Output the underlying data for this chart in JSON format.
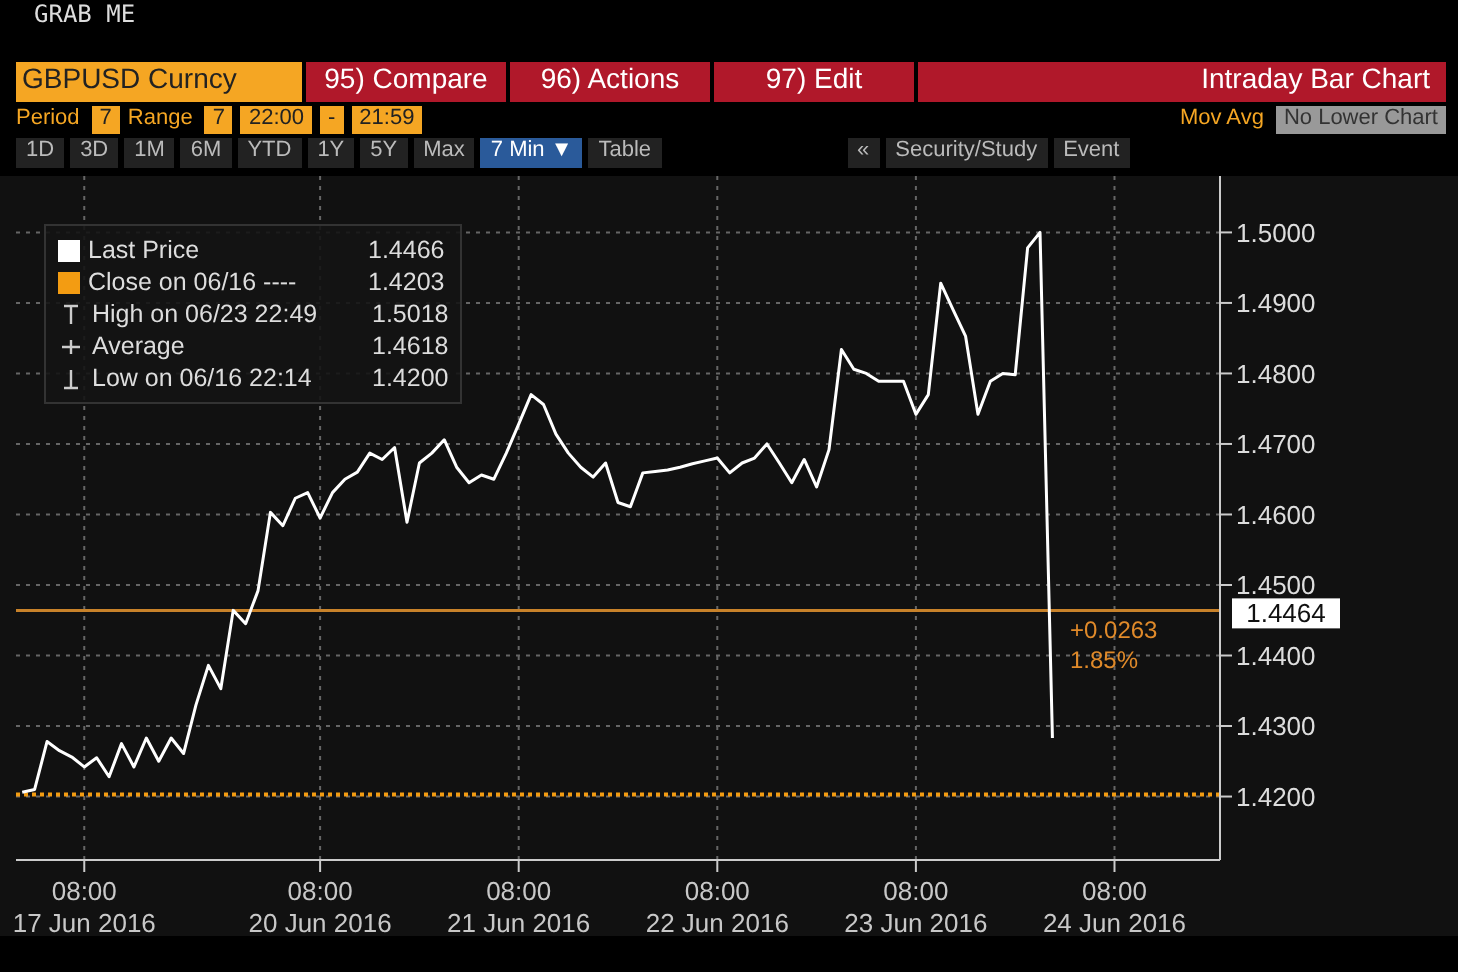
{
  "chart_data": {
    "type": "line",
    "title": "GBPUSD Curncy",
    "subtitle": "Intraday Bar Chart",
    "annotations": [
      "GRAB ME",
      "95) Compare",
      "96) Actions",
      "97) Edit",
      "Period",
      "7",
      "Range",
      "7",
      "22:00",
      "-",
      "21:59",
      "Mov Avg",
      "No Lower Chart",
      "1D",
      "3D",
      "1M",
      "6M",
      "YTD",
      "1Y",
      "5Y",
      "Max",
      "7 Min ▼",
      "Table",
      "«",
      "Security/Study",
      "Event",
      "1.4466",
      "Close on 06/16 ----",
      "1.4203",
      "High on 06/23 22:49",
      "1.5018",
      "Average",
      "1.4618",
      "Low on 06/16 22:14",
      "1.4200",
      "+0.0263",
      "1.85%"
    ],
    "categories": [
      null,
      null,
      null,
      null,
      null,
      "08:00\n17 Jun 2016",
      null,
      null,
      null,
      null,
      null,
      null,
      null,
      null,
      null,
      null,
      null,
      null,
      null,
      null,
      null,
      null,
      null,
      null,
      "08:00\n20 Jun 2016",
      null,
      null,
      null,
      null,
      null,
      null,
      null,
      null,
      null,
      null,
      null,
      null,
      null,
      null,
      null,
      "08:00\n21 Jun 2016",
      null,
      null,
      null,
      null,
      null,
      null,
      null,
      null,
      null,
      null,
      null,
      null,
      null,
      null,
      null,
      "08:00\n22 Jun 2016",
      null,
      null,
      null,
      null,
      null,
      null,
      null,
      null,
      null,
      null,
      null,
      null,
      null,
      null,
      null,
      "08:00\n23 Jun 2016",
      null,
      null,
      null,
      null,
      null,
      null,
      null,
      null,
      null,
      null,
      null,
      null,
      null,
      null,
      null,
      "08:00\n24 Jun 2016",
      null,
      null,
      null,
      null,
      null,
      null,
      null,
      null
    ],
    "series": [
      {
        "name": "Last Price",
        "color": "#ffffff",
        "values": [
          1.4206,
          1.421,
          1.4278,
          1.4265,
          1.4256,
          1.4242,
          1.4255,
          1.4228,
          1.4275,
          1.4242,
          1.4283,
          1.425,
          1.4283,
          1.4261,
          1.433,
          1.4386,
          1.4353,
          1.4464,
          1.4445,
          1.4492,
          1.4603,
          1.4584,
          1.4623,
          1.4631,
          1.4595,
          1.4631,
          1.465,
          1.466,
          1.4687,
          1.4678,
          1.4695,
          1.4589,
          1.4673,
          1.4687,
          1.4706,
          1.4667,
          1.4645,
          1.4656,
          1.465,
          1.4687,
          1.4728,
          1.477,
          1.4756,
          1.4714,
          1.4687,
          1.4667,
          1.4653,
          1.4673,
          1.4617,
          1.4611,
          1.4659,
          1.4661,
          1.4663,
          1.4667,
          1.4672,
          1.4676,
          1.468,
          1.4659,
          1.4673,
          1.468,
          1.47,
          1.4673,
          1.4645,
          1.4678,
          1.4639,
          1.4692,
          1.4834,
          1.4806,
          1.48,
          1.4789,
          1.4789,
          1.4789,
          1.4742,
          1.477,
          1.4928,
          1.489,
          1.4853,
          1.4742,
          1.4789,
          1.48,
          1.4798,
          1.4978,
          1.5,
          1.4283,
          null,
          null,
          null,
          null,
          null,
          null,
          null,
          null,
          null,
          null,
          null,
          null,
          null
        ]
      }
    ],
    "ref_lines": [
      {
        "axis": "y",
        "value": 1.4203,
        "color": "#f39c12",
        "line_style": "dotted"
      },
      {
        "axis": "y",
        "value": 1.4464,
        "label": "1.4464",
        "color": "#c8822a",
        "line_style": "solid"
      }
    ],
    "ylim": [
      1.411,
      1.508
    ],
    "yticks": [
      {
        "value": 1.42,
        "label": "1.4200"
      },
      {
        "value": 1.43,
        "label": "1.4300"
      },
      {
        "value": 1.44,
        "label": "1.4400"
      },
      {
        "value": 1.45,
        "label": "1.4500"
      },
      {
        "value": 1.46,
        "label": "1.4600"
      },
      {
        "value": 1.47,
        "label": "1.4700"
      },
      {
        "value": 1.48,
        "label": "1.4800"
      },
      {
        "value": 1.49,
        "label": "1.4900"
      },
      {
        "value": 1.5,
        "label": "1.5000"
      }
    ],
    "grid": true,
    "legend": "top left",
    "marker": "none",
    "line_style": "solid"
  }
}
